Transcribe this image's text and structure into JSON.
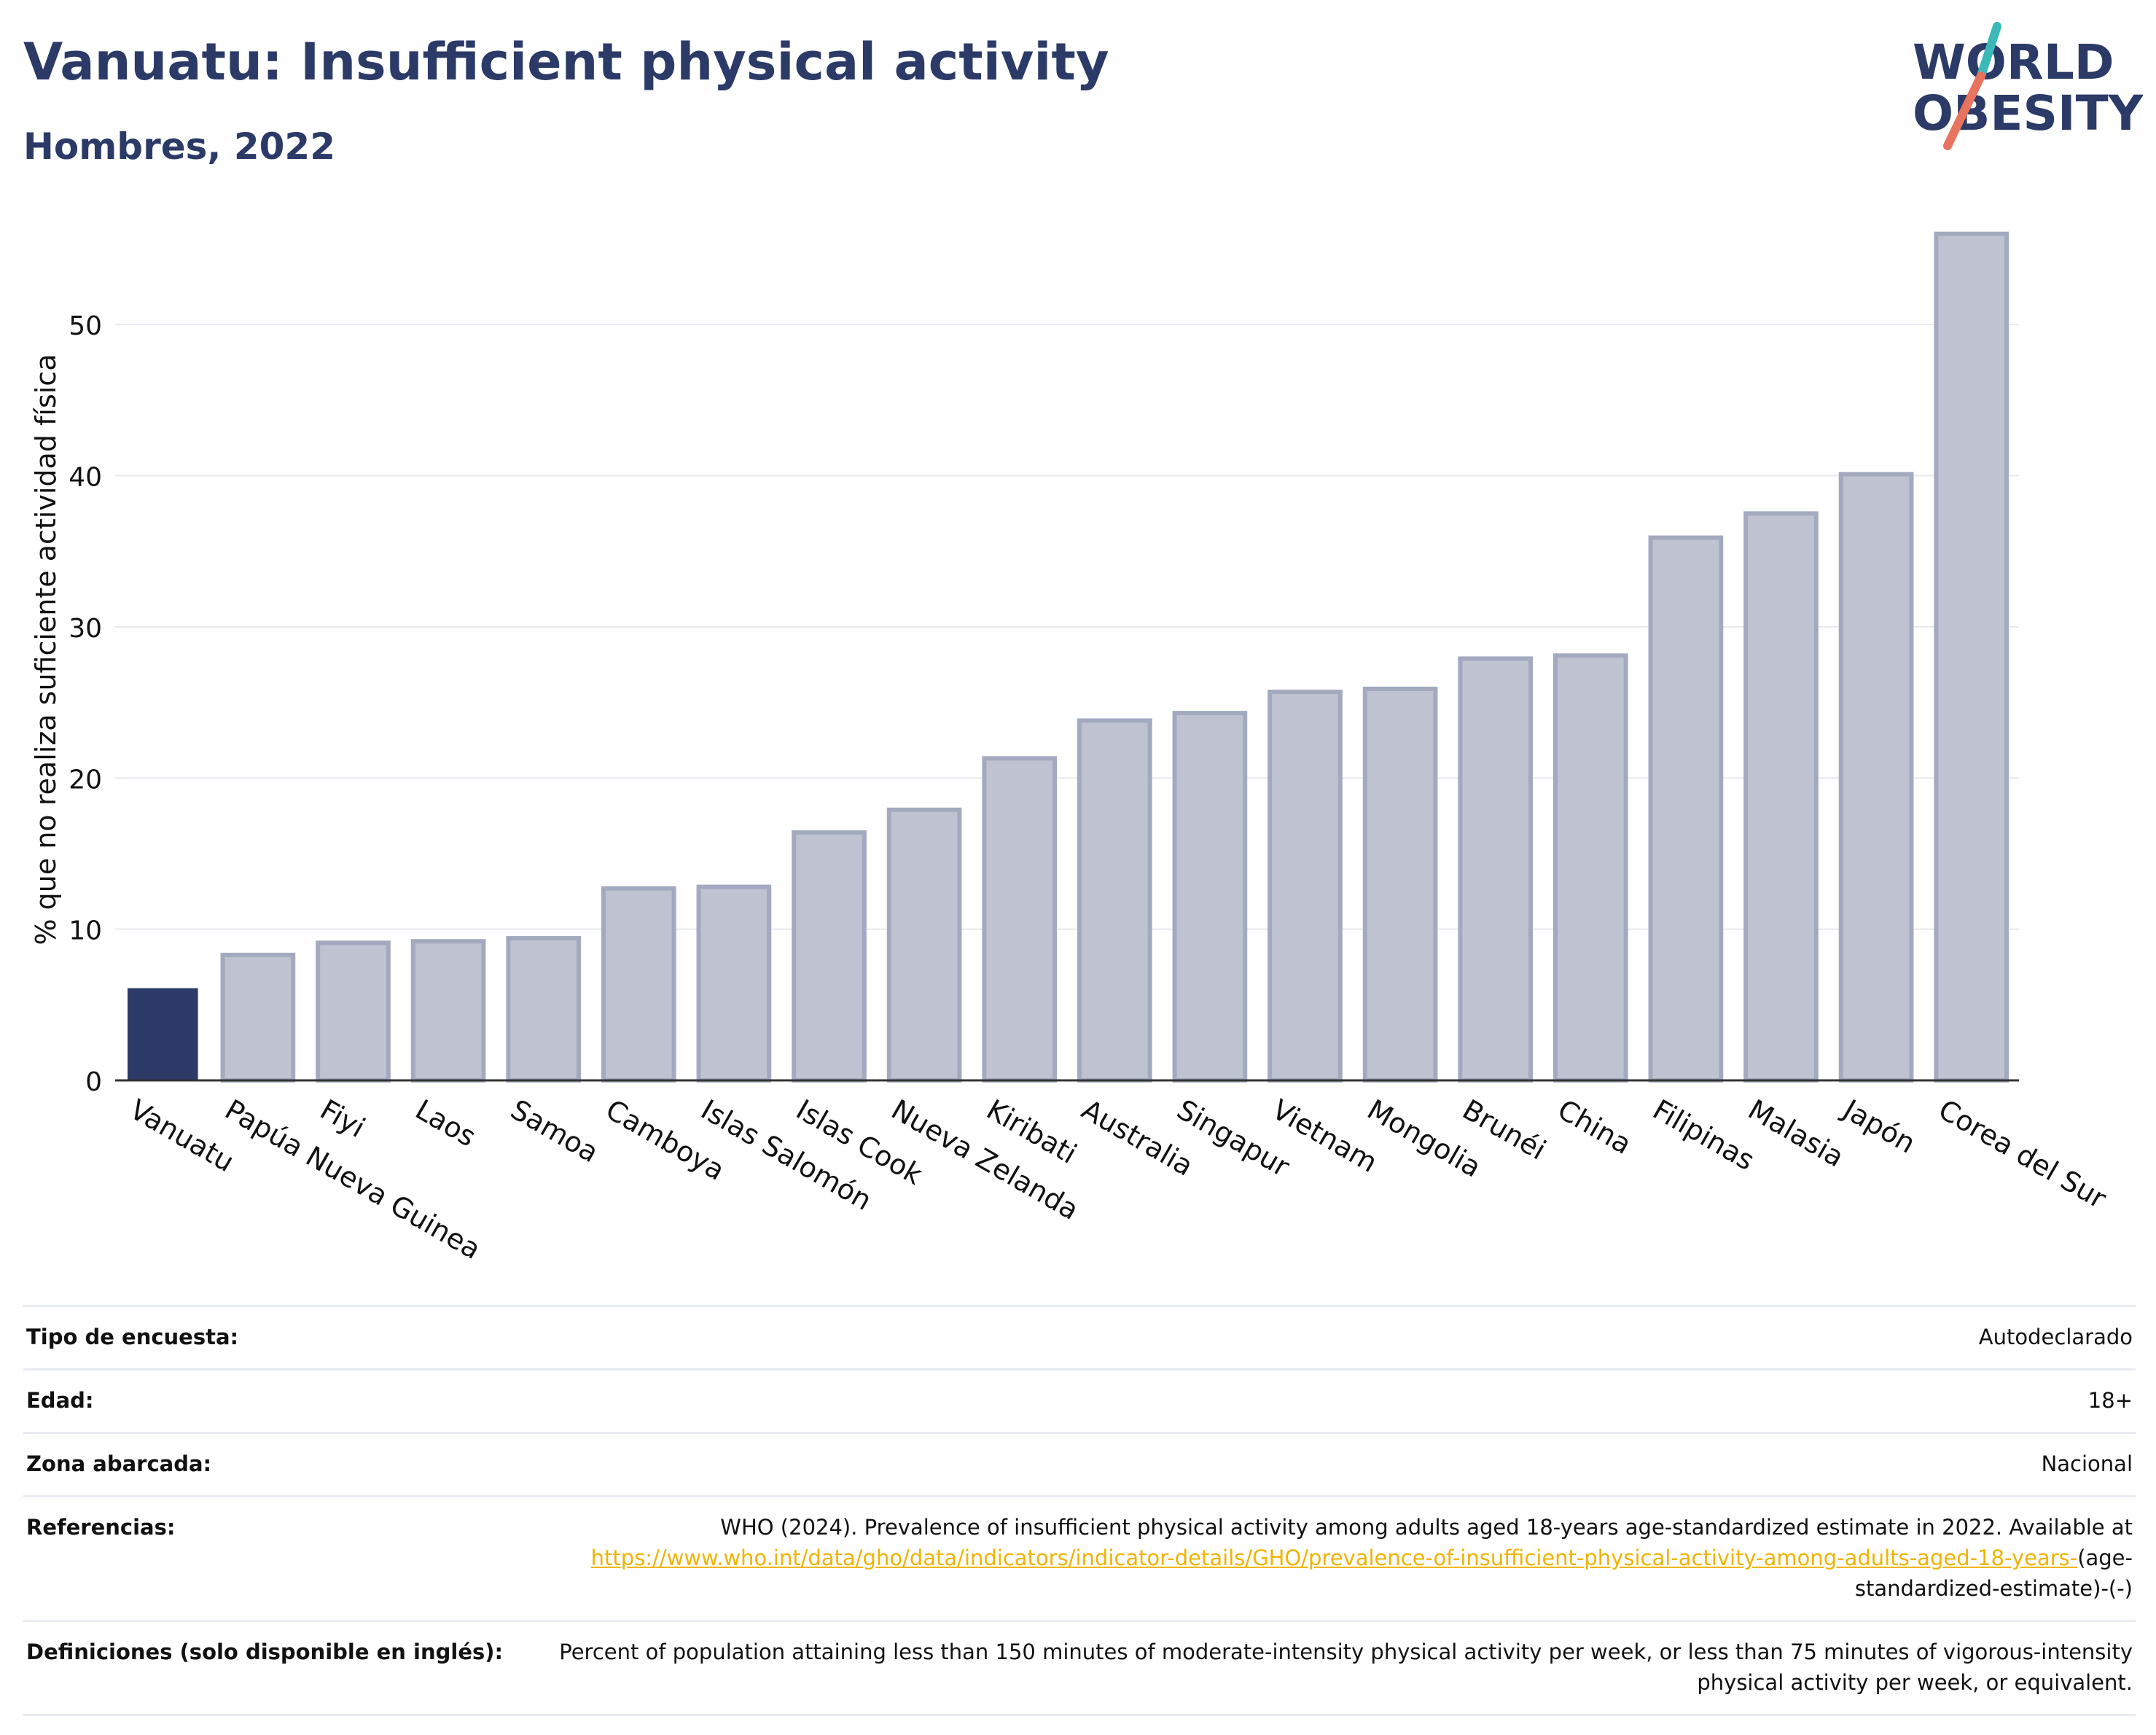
{
  "header": {
    "title": "Vanuatu: Insufficient physical activity",
    "subtitle": "Hombres, 2022"
  },
  "logo": {
    "line1": "WORLD",
    "line2": "OBESITY",
    "colors": {
      "text": "#2b3a67",
      "slash_teal": "#3bb8b8",
      "slash_coral": "#e8735e"
    }
  },
  "chart_data": {
    "type": "bar",
    "ylabel": "% que no realiza suficiente actividad física",
    "ylim": [
      0,
      57
    ],
    "yticks": [
      0,
      10,
      20,
      30,
      40,
      50
    ],
    "grid": true,
    "highlight": "Vanuatu",
    "colors": {
      "highlight": "#2b3a67",
      "bar_fill": "#bfc3d1",
      "bar_stroke": "#a3a9bf"
    },
    "categories": [
      "Vanuatu",
      "Papúa Nueva Guinea",
      "Fiyi",
      "Laos",
      "Samoa",
      "Camboya",
      "Islas Salomón",
      "Islas Cook",
      "Nueva Zelanda",
      "Kiribati",
      "Australia",
      "Singapur",
      "Vietnam",
      "Mongolia",
      "Brunéi",
      "China",
      "Filipinas",
      "Malasia",
      "Japón",
      "Corea del Sur"
    ],
    "values": [
      6.1,
      8.3,
      9.1,
      9.2,
      9.4,
      12.7,
      12.8,
      16.4,
      17.9,
      21.3,
      23.8,
      24.3,
      25.7,
      25.9,
      27.9,
      28.1,
      35.9,
      37.5,
      40.1,
      56.0
    ]
  },
  "meta": {
    "rows": [
      {
        "label": "Tipo de encuesta:",
        "value": "Autodeclarado"
      },
      {
        "label": "Edad:",
        "value": "18+"
      },
      {
        "label": "Zona abarcada:",
        "value": "Nacional"
      },
      {
        "label": "Referencias:",
        "value": "WHO (2024). Prevalence of insufficient physical activity among adults aged 18-years age-standardized estimate in 2022. Available at",
        "link": "https://www.who.int/data/gho/data/indicators/indicator-details/GHO/prevalence-of-insufficient-physical-activity-among-adults-aged-18-years-",
        "suffix": "(age-standardized-estimate)-(-)"
      },
      {
        "label": "Definiciones (solo disponible en inglés):",
        "value": "Percent of population attaining less than 150 minutes of moderate-intensity physical activity per week, or less than 75 minutes of vigorous-intensity physical activity per week, or equivalent."
      }
    ]
  }
}
